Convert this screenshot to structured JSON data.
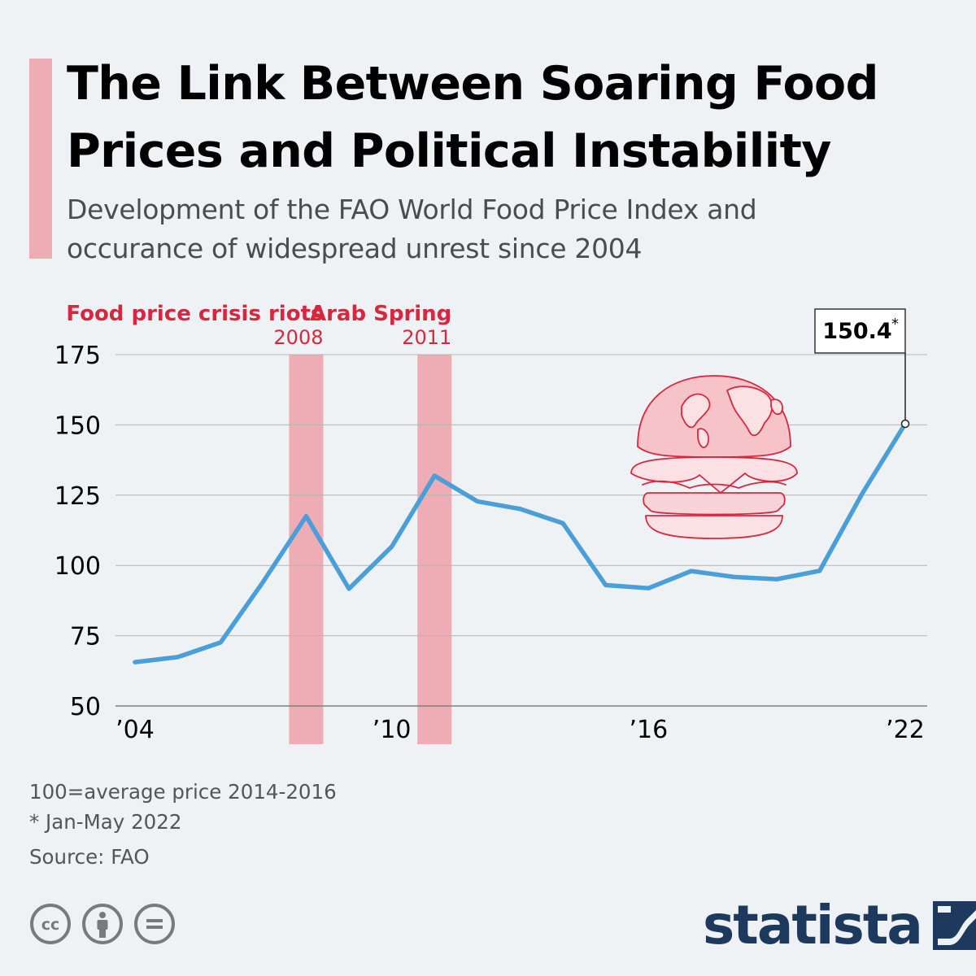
{
  "header": {
    "title_line1": "The Link Between Soaring Food",
    "title_line2": "Prices and Political Instability",
    "subtitle_line1": "Development of the FAO World Food Price Index and",
    "subtitle_line2": "occurance of widespread unrest since 2004"
  },
  "colors": {
    "accent": "#eeacb5",
    "line": "#4a9fd8",
    "event_text": "#d9263f",
    "brand": "#1d3a5e",
    "grid": "#b5b5b5"
  },
  "chart_data": {
    "type": "line",
    "title": "The Link Between Soaring Food Prices and Political Instability",
    "subtitle": "Development of the FAO World Food Price Index and occurance of widespread unrest since 2004",
    "xlabel": "",
    "ylabel": "",
    "x": [
      2004,
      2005,
      2006,
      2007,
      2008,
      2009,
      2010,
      2011,
      2012,
      2013,
      2014,
      2015,
      2016,
      2017,
      2018,
      2019,
      2020,
      2021,
      2022
    ],
    "values": [
      65.6,
      67.4,
      72.6,
      94.3,
      117.5,
      91.7,
      106.7,
      131.9,
      122.8,
      120.1,
      115.0,
      93.0,
      91.9,
      98.0,
      95.9,
      95.1,
      98.1,
      125.7,
      150.4
    ],
    "xticks": [
      {
        "value": 2004,
        "label": "’04"
      },
      {
        "value": 2010,
        "label": "’10"
      },
      {
        "value": 2016,
        "label": "’16"
      },
      {
        "value": 2022,
        "label": "’22"
      }
    ],
    "ylim": [
      50,
      175
    ],
    "yticks": [
      50,
      75,
      100,
      125,
      150,
      175
    ],
    "grid": true,
    "events": [
      {
        "name": "Food price crisis riots",
        "year_label": "2008",
        "start": 2007.6,
        "end": 2008.4
      },
      {
        "name": "Arab Spring",
        "year_label": "2011",
        "start": 2010.6,
        "end": 2011.4
      }
    ],
    "callout": {
      "x": 2022,
      "value_label": "150.4",
      "marker": "*"
    }
  },
  "footer": {
    "note1": "100=average price 2014-2016",
    "note2": "* Jan-May 2022",
    "source": "Source: FAO",
    "brand": "statista",
    "license_icons": [
      "cc-icon",
      "attribution-icon",
      "no-derivatives-icon"
    ]
  }
}
